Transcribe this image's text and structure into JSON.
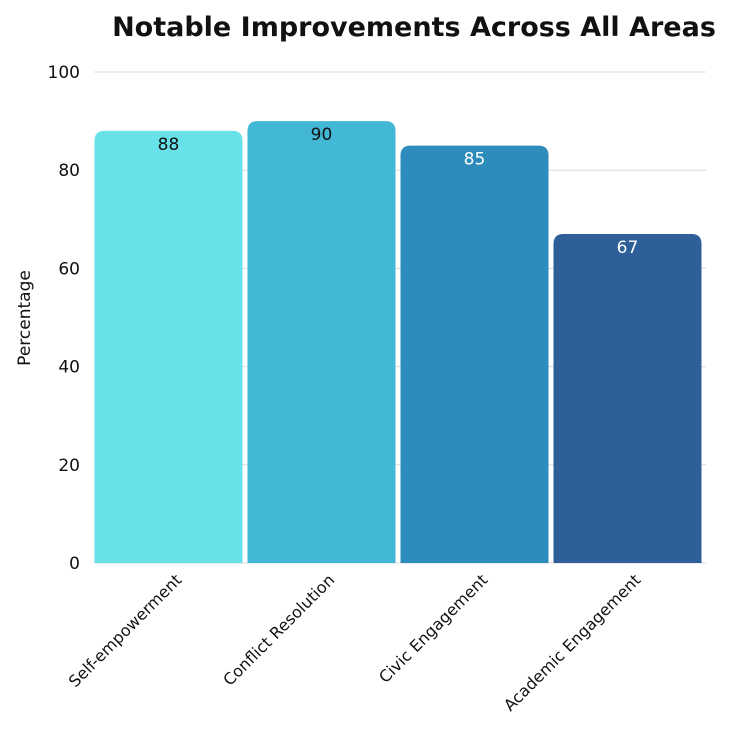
{
  "chart_data": {
    "type": "bar",
    "title": "Notable Improvements Across All Areas",
    "ylabel": "Percentage",
    "xlabel": "",
    "ylim": [
      0,
      100
    ],
    "yticks": [
      0,
      20,
      40,
      60,
      80,
      100
    ],
    "grid": true,
    "categories": [
      "Self-empowerment",
      "Conflict Resolution",
      "Civic Engagement",
      "Academic Engagement"
    ],
    "values": [
      88,
      90,
      85,
      67
    ],
    "colors": [
      "#68E2E8",
      "#42B7D6",
      "#2D8CBC",
      "#2F5F98"
    ],
    "label_colors": [
      "#111111",
      "#111111",
      "#ffffff",
      "#ffffff"
    ]
  }
}
